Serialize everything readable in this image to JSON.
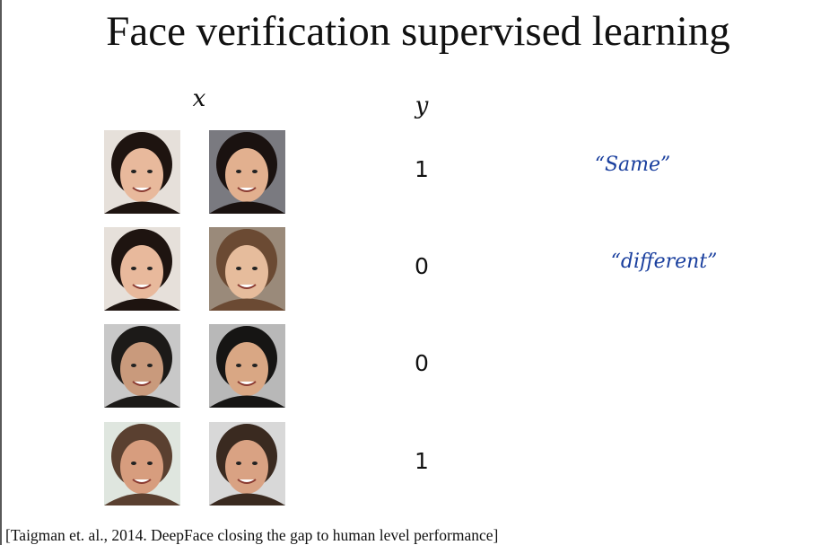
{
  "header": {
    "title": "Face verification supervised learning"
  },
  "columns": {
    "x": "x",
    "y": "y"
  },
  "rows": [
    {
      "y": 1,
      "note": "“Same”"
    },
    {
      "y": 0,
      "note": "“different”"
    },
    {
      "y": 0
    },
    {
      "y": 1
    }
  ],
  "citation": "[Taigman et. al., 2014. DeepFace closing the gap to human level performance]"
}
